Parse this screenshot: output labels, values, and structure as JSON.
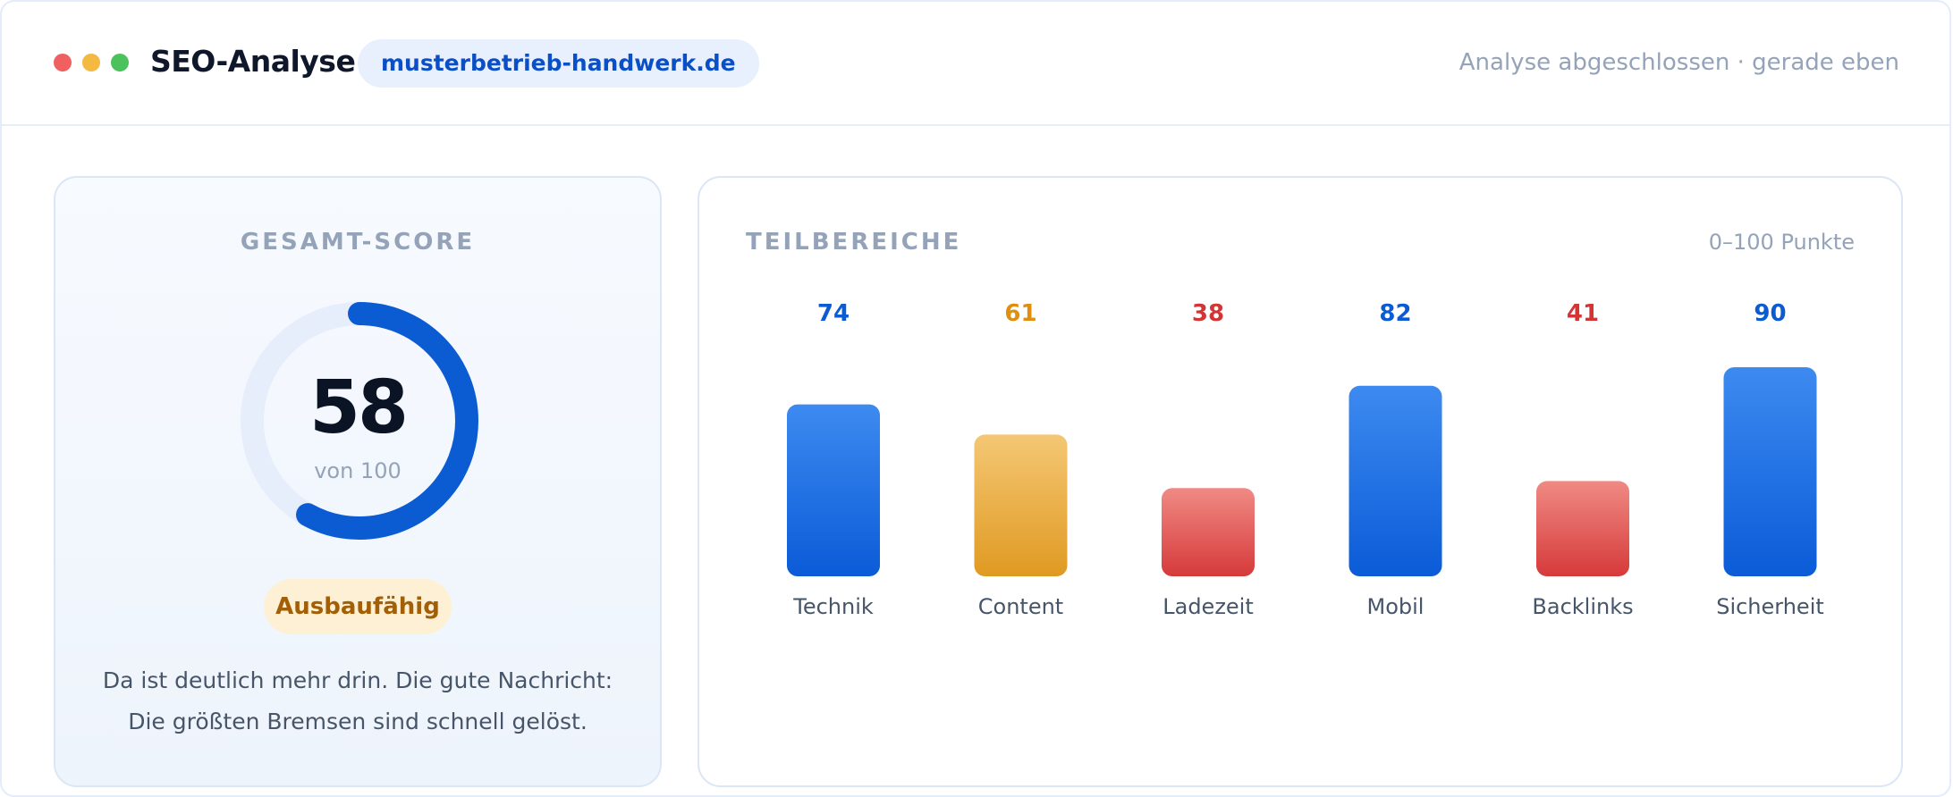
{
  "window": {
    "title": "SEO-Analyse",
    "domain": "musterbetrieb-handwerk.de",
    "status": "Analyse abgeschlossen · gerade eben"
  },
  "score": {
    "label": "GESAMT-SCORE",
    "value": 58,
    "max_label": "von 100",
    "fraction": 0.58,
    "rating": "Ausbaufähig",
    "text_line1": "Da ist deutlich mehr drin. Die gute Nachricht:",
    "text_line2": "Die größten Bremsen sind schnell gelöst."
  },
  "areas": {
    "label": "TEILBEREICHE",
    "unit": "0–100 Punkte"
  },
  "colors": {
    "blue": "#1763e0",
    "blue_light": "#3d8af0",
    "orange": "#e09a22",
    "orange_light": "#f4c774",
    "red": "#d63a3a",
    "red_light": "#f08a84",
    "gauge_track": "#e6eefb"
  },
  "chart_data": {
    "type": "bar",
    "categories": [
      "Technik",
      "Content",
      "Ladezeit",
      "Mobil",
      "Backlinks",
      "Sicherheit"
    ],
    "values": [
      74,
      61,
      38,
      82,
      41,
      90
    ],
    "value_colors": [
      "#0b5bd3",
      "#e08e0b",
      "#d43434",
      "#0b5bd3",
      "#d43434",
      "#0b5bd3"
    ],
    "ylim": [
      0,
      100
    ],
    "title": "",
    "xlabel": "",
    "ylabel": ""
  }
}
